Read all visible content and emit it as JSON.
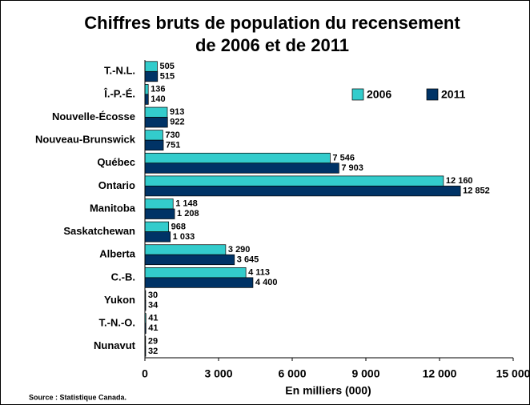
{
  "chart_data": {
    "type": "bar",
    "orientation": "horizontal",
    "title": [
      "Chiffres bruts de population du recensement",
      "de 2006 et de 2011"
    ],
    "categories": [
      "T.-N.L.",
      "Î.-P.-É.",
      "Nouvelle-Écosse",
      "Nouveau-Brunswick",
      "Québec",
      "Ontario",
      "Manitoba",
      "Saskatchewan",
      "Alberta",
      "C.-B.",
      "Yukon",
      "T.-N.-O.",
      "Nunavut"
    ],
    "series": [
      {
        "name": "2006",
        "color": "#33cccc",
        "values": [
          505,
          136,
          913,
          730,
          7546,
          12160,
          1148,
          968,
          3290,
          4113,
          30,
          41,
          29
        ],
        "value_labels": [
          "505",
          "136",
          "913",
          "730",
          "7 546",
          "12 160",
          "1 148",
          "968",
          "3 290",
          "4 113",
          "30",
          "41",
          "29"
        ]
      },
      {
        "name": "2011",
        "color": "#003366",
        "values": [
          515,
          140,
          922,
          751,
          7903,
          12852,
          1208,
          1033,
          3645,
          4400,
          34,
          41,
          32
        ],
        "value_labels": [
          "515",
          "140",
          "922",
          "751",
          "7 903",
          "12 852",
          "1 208",
          "1 033",
          "3 645",
          "4 400",
          "34",
          "41",
          "32"
        ]
      }
    ],
    "xlim": [
      0,
      15000
    ],
    "xticks": [
      0,
      {
        "value": 3000,
        "label": "3 000"
      },
      {
        "value": 6000,
        "label": "6 000"
      },
      {
        "value": 9000,
        "label": "9 000"
      },
      {
        "value": 12000,
        "label": "12 000"
      },
      {
        "value": 15000,
        "label": "15 000"
      }
    ],
    "xlabel": "En milliers (000)",
    "source": "Source : Statistique Canada.",
    "legend": "top-right"
  }
}
